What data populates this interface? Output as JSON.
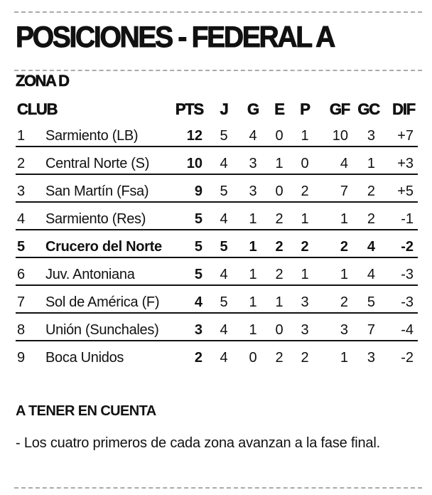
{
  "title": "POSICIONES - FEDERAL A",
  "zone": "ZONA D",
  "columns": {
    "club": "CLUB",
    "pts": "PTS",
    "j": "J",
    "g": "G",
    "e": "E",
    "p": "P",
    "gf": "GF",
    "gc": "GC",
    "dif": "DIF"
  },
  "highlighted_rank": "5",
  "rows": [
    {
      "rank": "1",
      "club": "Sarmiento (LB)",
      "pts": "12",
      "j": "5",
      "g": "4",
      "e": "0",
      "p": "1",
      "gf": "10",
      "gc": "3",
      "dif": "+7"
    },
    {
      "rank": "2",
      "club": "Central Norte (S)",
      "pts": "10",
      "j": "4",
      "g": "3",
      "e": "1",
      "p": "0",
      "gf": "4",
      "gc": "1",
      "dif": "+3"
    },
    {
      "rank": "3",
      "club": "San Martín (Fsa)",
      "pts": "9",
      "j": "5",
      "g": "3",
      "e": "0",
      "p": "2",
      "gf": "7",
      "gc": "2",
      "dif": "+5"
    },
    {
      "rank": "4",
      "club": "Sarmiento (Res)",
      "pts": "5",
      "j": "4",
      "g": "1",
      "e": "2",
      "p": "1",
      "gf": "1",
      "gc": "2",
      "dif": "-1"
    },
    {
      "rank": "5",
      "club": "Crucero del Norte",
      "pts": "5",
      "j": "5",
      "g": "1",
      "e": "2",
      "p": "2",
      "gf": "2",
      "gc": "4",
      "dif": "-2"
    },
    {
      "rank": "6",
      "club": "Juv. Antoniana",
      "pts": "5",
      "j": "4",
      "g": "1",
      "e": "2",
      "p": "1",
      "gf": "1",
      "gc": "4",
      "dif": "-3"
    },
    {
      "rank": "7",
      "club": "Sol de América (F)",
      "pts": "4",
      "j": "5",
      "g": "1",
      "e": "1",
      "p": "3",
      "gf": "2",
      "gc": "5",
      "dif": "-3"
    },
    {
      "rank": "8",
      "club": "Unión (Sunchales)",
      "pts": "3",
      "j": "4",
      "g": "1",
      "e": "0",
      "p": "3",
      "gf": "3",
      "gc": "7",
      "dif": "-4"
    },
    {
      "rank": "9",
      "club": "Boca Unidos",
      "pts": "2",
      "j": "4",
      "g": "0",
      "e": "2",
      "p": "2",
      "gf": "1",
      "gc": "3",
      "dif": "-2"
    }
  ],
  "note": {
    "title": "A TENER EN CUENTA",
    "text": "- Los cuatro primeros de cada zona avanzan a la fase final."
  }
}
